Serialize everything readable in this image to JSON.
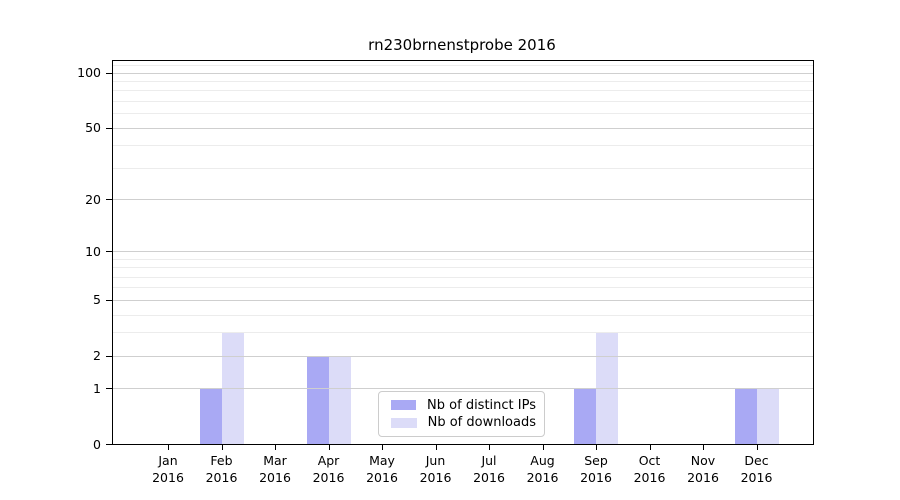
{
  "chart_data": {
    "type": "bar",
    "title": "rn230brnenstprobe 2016",
    "categories": [
      "Jan",
      "Feb",
      "Mar",
      "Apr",
      "May",
      "Jun",
      "Jul",
      "Aug",
      "Sep",
      "Oct",
      "Nov",
      "Dec"
    ],
    "category_year": "2016",
    "series": [
      {
        "name": "Nb of distinct IPs",
        "color": "#a9a9f4",
        "values": [
          0,
          1,
          0,
          2,
          0,
          0,
          0,
          0,
          1,
          0,
          0,
          1
        ]
      },
      {
        "name": "Nb of downloads",
        "color": "#dcdcf8",
        "values": [
          0,
          3,
          0,
          2,
          0,
          0,
          0,
          0,
          3,
          0,
          0,
          1
        ]
      }
    ],
    "y_axis": {
      "scale": "log1p",
      "ticks": [
        0,
        1,
        2,
        5,
        10,
        20,
        50,
        100
      ],
      "minor_ticks": [
        3,
        4,
        6,
        7,
        8,
        9,
        30,
        40,
        60,
        70,
        80,
        90,
        110
      ],
      "max": 115.6
    },
    "grid": {
      "major_color": "#cfcfcf",
      "minor_color": "#ececec",
      "on": true
    },
    "legend_position": "inside-bottom-center"
  }
}
